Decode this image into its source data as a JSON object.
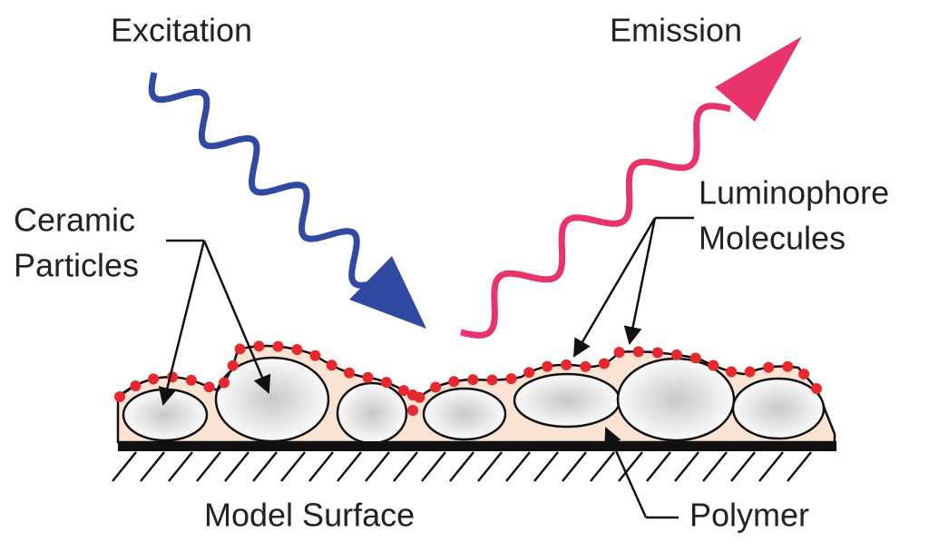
{
  "labels": {
    "excitation": "Excitation",
    "emission": "Emission",
    "ceramic_particles": [
      "Ceramic",
      "Particles"
    ],
    "luminophore_molecules": [
      "Luminophore",
      "Molecules"
    ],
    "model_surface": "Model Surface",
    "polymer": "Polymer"
  }
}
